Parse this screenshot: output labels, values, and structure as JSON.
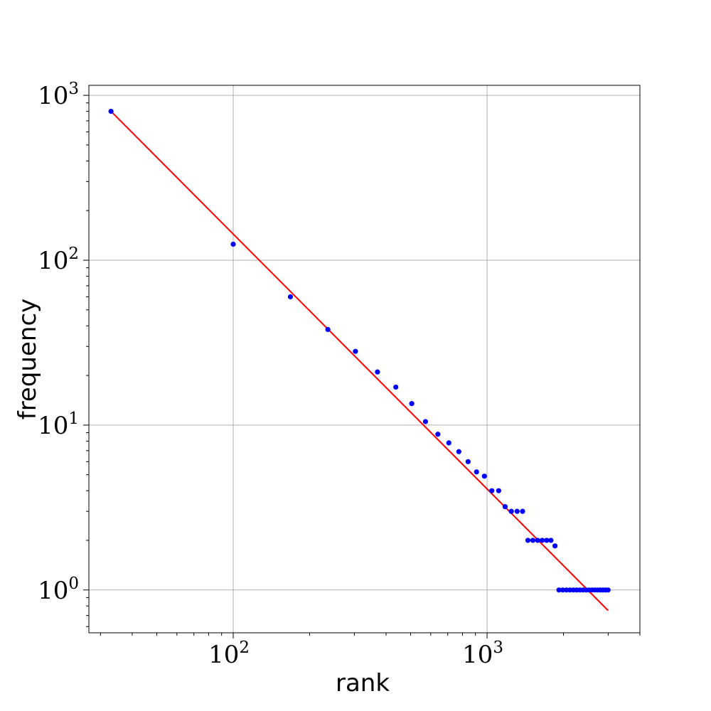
{
  "chart_data": {
    "type": "scatter",
    "title": "",
    "xlabel": "rank",
    "ylabel": "frequency",
    "xscale": "log",
    "yscale": "log",
    "xlim": [
      27,
      4000
    ],
    "ylim": [
      0.55,
      1150
    ],
    "grid": true,
    "x_ticks": [
      {
        "base": "10",
        "exp": "2",
        "value": 100
      },
      {
        "base": "10",
        "exp": "3",
        "value": 1000
      }
    ],
    "y_ticks": [
      {
        "base": "10",
        "exp": "0",
        "value": 1
      },
      {
        "base": "10",
        "exp": "1",
        "value": 10
      },
      {
        "base": "10",
        "exp": "2",
        "value": 100
      },
      {
        "base": "10",
        "exp": "3",
        "value": 1000
      }
    ],
    "series": [
      {
        "kind": "scatter",
        "color": "#0000ff",
        "x": [
          33,
          100,
          168,
          236,
          303,
          370,
          437,
          505,
          572,
          640,
          707,
          774,
          842,
          909,
          976,
          1044,
          1111,
          1178,
          1246,
          1313,
          1380,
          1448,
          1515,
          1582,
          1650,
          1717,
          1785,
          1852,
          1919,
          1987,
          2054,
          2121,
          2189,
          2256,
          2323,
          2391,
          2458,
          2526,
          2593,
          2660,
          2728,
          2795,
          2862,
          2930,
          2997
        ],
        "y": [
          800,
          125,
          60,
          38,
          28,
          21,
          17,
          13.5,
          10.5,
          8.8,
          7.8,
          6.9,
          6.0,
          5.2,
          4.9,
          4.0,
          4.0,
          3.2,
          3.0,
          3.0,
          3.0,
          2.0,
          2.0,
          2.0,
          2.0,
          2.0,
          2.0,
          1.85,
          1,
          1,
          1,
          1,
          1,
          1,
          1,
          1,
          1,
          1,
          1,
          1,
          1,
          1,
          1,
          1,
          1
        ]
      },
      {
        "kind": "line",
        "color": "#ff0000",
        "x": [
          33,
          3000
        ],
        "y": [
          800,
          0.75
        ]
      }
    ]
  }
}
